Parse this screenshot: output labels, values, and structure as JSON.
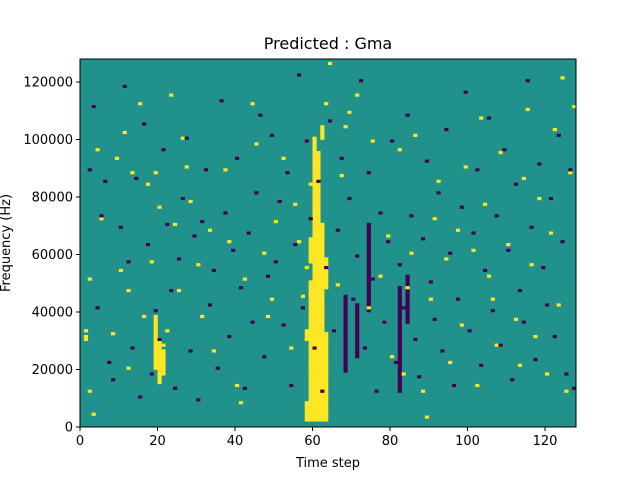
{
  "chart_data": {
    "type": "heatmap",
    "title": "Predicted : Gma",
    "xlabel": "Time step",
    "ylabel": "Frequency (Hz)",
    "xlim": [
      0,
      128
    ],
    "ylim": [
      0,
      128000
    ],
    "x_ticks": [
      0,
      20,
      40,
      60,
      80,
      100,
      120
    ],
    "y_ticks": [
      0,
      20000,
      40000,
      60000,
      80000,
      100000,
      120000
    ],
    "y_tick_labels": [
      "0",
      "20000",
      "40000",
      "60000",
      "80000",
      "100000",
      "120000"
    ],
    "n_time_steps": 128,
    "n_freq_bins": 128,
    "value_levels": [
      -1,
      0,
      1
    ],
    "colors": {
      "low": "#440154",
      "mid": "#21918c",
      "high": "#fde725"
    },
    "grid": false,
    "cells_high": [
      [
        1,
        30
      ],
      [
        1,
        31
      ],
      [
        1,
        33
      ],
      [
        2,
        51
      ],
      [
        2,
        12
      ],
      [
        3,
        4
      ],
      [
        4,
        96
      ],
      [
        5,
        72
      ],
      [
        8,
        32
      ],
      [
        9,
        93
      ],
      [
        10,
        54
      ],
      [
        11,
        102
      ],
      [
        12,
        47
      ],
      [
        12,
        20
      ],
      [
        13,
        88
      ],
      [
        15,
        112
      ],
      [
        16,
        38
      ],
      [
        17,
        84
      ],
      [
        18,
        57
      ],
      [
        19,
        88
      ],
      [
        20,
        76
      ],
      [
        20,
        23
      ],
      [
        21,
        28
      ],
      [
        22,
        33
      ],
      [
        23,
        115
      ],
      [
        24,
        70
      ],
      [
        25,
        47
      ],
      [
        26,
        100
      ],
      [
        27,
        90
      ],
      [
        28,
        78
      ],
      [
        30,
        56
      ],
      [
        31,
        38
      ],
      [
        33,
        68
      ],
      [
        34,
        26
      ],
      [
        37,
        89
      ],
      [
        38,
        64
      ],
      [
        40,
        14
      ],
      [
        41,
        8
      ],
      [
        42,
        51
      ],
      [
        44,
        112
      ],
      [
        45,
        98
      ],
      [
        47,
        60
      ],
      [
        48,
        38
      ],
      [
        49,
        44
      ],
      [
        50,
        71
      ],
      [
        52,
        93
      ],
      [
        54,
        27
      ],
      [
        55,
        77
      ],
      [
        56,
        64
      ],
      [
        57,
        45
      ],
      [
        58,
        55
      ],
      [
        58,
        30
      ],
      [
        59,
        84
      ],
      [
        59,
        20
      ],
      [
        62,
        68
      ],
      [
        63,
        112
      ],
      [
        64,
        126
      ],
      [
        66,
        49
      ],
      [
        67,
        87
      ],
      [
        68,
        104
      ],
      [
        69,
        109
      ],
      [
        71,
        115
      ],
      [
        74,
        41
      ],
      [
        75,
        99
      ],
      [
        77,
        52
      ],
      [
        78,
        36
      ],
      [
        79,
        66
      ],
      [
        80,
        24
      ],
      [
        82,
        96
      ],
      [
        83,
        18
      ],
      [
        84,
        48
      ],
      [
        85,
        60
      ],
      [
        86,
        101
      ],
      [
        88,
        12
      ],
      [
        89,
        3
      ],
      [
        90,
        44
      ],
      [
        91,
        72
      ],
      [
        92,
        85
      ],
      [
        94,
        58
      ],
      [
        95,
        22
      ],
      [
        97,
        68
      ],
      [
        98,
        35
      ],
      [
        99,
        90
      ],
      [
        101,
        61
      ],
      [
        102,
        14
      ],
      [
        103,
        107
      ],
      [
        104,
        77
      ],
      [
        105,
        52
      ],
      [
        106,
        44
      ],
      [
        107,
        28
      ],
      [
        108,
        95
      ],
      [
        110,
        63
      ],
      [
        112,
        37
      ],
      [
        113,
        21
      ],
      [
        114,
        86
      ],
      [
        115,
        110
      ],
      [
        116,
        56
      ],
      [
        117,
        31
      ],
      [
        118,
        79
      ],
      [
        120,
        18
      ],
      [
        121,
        67
      ],
      [
        122,
        103
      ],
      [
        123,
        42
      ],
      [
        124,
        121
      ],
      [
        125,
        12
      ],
      [
        126,
        88
      ],
      [
        127,
        111
      ]
    ],
    "cells_low": [
      [
        2,
        89
      ],
      [
        3,
        111
      ],
      [
        4,
        41
      ],
      [
        5,
        73
      ],
      [
        6,
        85
      ],
      [
        7,
        22
      ],
      [
        8,
        16
      ],
      [
        10,
        69
      ],
      [
        11,
        118
      ],
      [
        12,
        57
      ],
      [
        13,
        27
      ],
      [
        14,
        86
      ],
      [
        15,
        10
      ],
      [
        16,
        105
      ],
      [
        17,
        63
      ],
      [
        18,
        18
      ],
      [
        19,
        40
      ],
      [
        20,
        30
      ],
      [
        21,
        96
      ],
      [
        22,
        70
      ],
      [
        23,
        47
      ],
      [
        24,
        13
      ],
      [
        25,
        58
      ],
      [
        26,
        79
      ],
      [
        27,
        100
      ],
      [
        28,
        26
      ],
      [
        29,
        66
      ],
      [
        30,
        9
      ],
      [
        31,
        71
      ],
      [
        32,
        89
      ],
      [
        33,
        42
      ],
      [
        34,
        54
      ],
      [
        35,
        20
      ],
      [
        36,
        113
      ],
      [
        37,
        74
      ],
      [
        38,
        31
      ],
      [
        39,
        61
      ],
      [
        40,
        93
      ],
      [
        41,
        48
      ],
      [
        42,
        13
      ],
      [
        43,
        67
      ],
      [
        44,
        36
      ],
      [
        45,
        81
      ],
      [
        46,
        108
      ],
      [
        47,
        24
      ],
      [
        48,
        52
      ],
      [
        49,
        101
      ],
      [
        50,
        57
      ],
      [
        51,
        78
      ],
      [
        52,
        35
      ],
      [
        53,
        88
      ],
      [
        54,
        14
      ],
      [
        55,
        63
      ],
      [
        56,
        122
      ],
      [
        57,
        41
      ],
      [
        58,
        99
      ],
      [
        59,
        72
      ],
      [
        60,
        27
      ],
      [
        61,
        85
      ],
      [
        62,
        12
      ],
      [
        63,
        55
      ],
      [
        64,
        106
      ],
      [
        65,
        33
      ],
      [
        66,
        68
      ],
      [
        67,
        93
      ],
      [
        68,
        19
      ],
      [
        69,
        79
      ],
      [
        70,
        44
      ],
      [
        71,
        59
      ],
      [
        72,
        120
      ],
      [
        73,
        27
      ],
      [
        74,
        88
      ],
      [
        75,
        51
      ],
      [
        76,
        12
      ],
      [
        77,
        74
      ],
      [
        78,
        36
      ],
      [
        79,
        64
      ],
      [
        80,
        99
      ],
      [
        81,
        22
      ],
      [
        82,
        56
      ],
      [
        83,
        41
      ],
      [
        84,
        108
      ],
      [
        85,
        73
      ],
      [
        86,
        30
      ],
      [
        87,
        17
      ],
      [
        88,
        65
      ],
      [
        89,
        92
      ],
      [
        90,
        50
      ],
      [
        91,
        37
      ],
      [
        92,
        81
      ],
      [
        93,
        26
      ],
      [
        94,
        103
      ],
      [
        95,
        60
      ],
      [
        96,
        14
      ],
      [
        97,
        44
      ],
      [
        98,
        76
      ],
      [
        99,
        116
      ],
      [
        100,
        33
      ],
      [
        101,
        67
      ],
      [
        102,
        89
      ],
      [
        103,
        21
      ],
      [
        104,
        54
      ],
      [
        105,
        107
      ],
      [
        106,
        40
      ],
      [
        107,
        73
      ],
      [
        108,
        28
      ],
      [
        109,
        96
      ],
      [
        110,
        61
      ],
      [
        111,
        16
      ],
      [
        112,
        84
      ],
      [
        113,
        47
      ],
      [
        114,
        36
      ],
      [
        115,
        120
      ],
      [
        116,
        69
      ],
      [
        117,
        23
      ],
      [
        118,
        91
      ],
      [
        119,
        55
      ],
      [
        120,
        42
      ],
      [
        121,
        79
      ],
      [
        122,
        31
      ],
      [
        123,
        101
      ],
      [
        124,
        64
      ],
      [
        125,
        18
      ],
      [
        126,
        89
      ],
      [
        127,
        13
      ]
    ]
  }
}
